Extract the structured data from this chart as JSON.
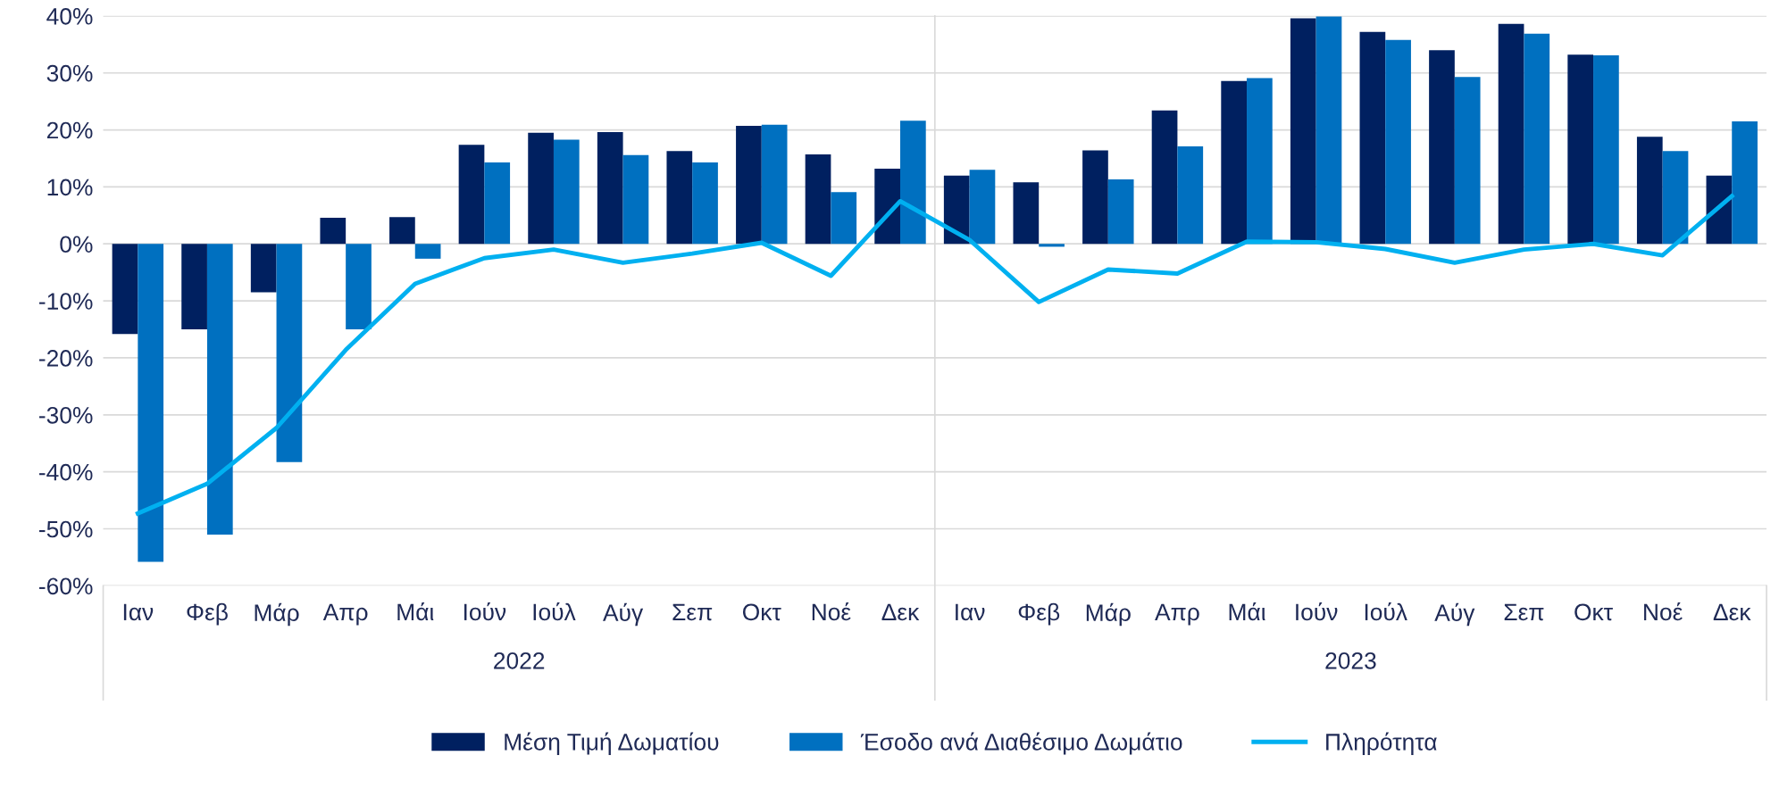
{
  "chart_data": {
    "type": "bar",
    "categories": [
      "Ιαν",
      "Φεβ",
      "Μάρ",
      "Απρ",
      "Μάι",
      "Ιούν",
      "Ιούλ",
      "Αύγ",
      "Σεπ",
      "Οκτ",
      "Νοέ",
      "Δεκ",
      "Ιαν",
      "Φεβ",
      "Μάρ",
      "Απρ",
      "Μάι",
      "Ιούν",
      "Ιούλ",
      "Αύγ",
      "Σεπ",
      "Οκτ",
      "Νοέ",
      "Δεκ"
    ],
    "series": [
      {
        "name": "Μέση Τιμή Δωματίου",
        "color": "#002060",
        "values": [
          -15.8,
          -15,
          -8.5,
          4.6,
          4.7,
          17.4,
          19.5,
          19.6,
          16.3,
          20.7,
          15.7,
          13.2,
          12,
          10.8,
          16.4,
          23.4,
          28.6,
          39.6,
          37.2,
          34,
          38.6,
          33.2,
          18.8,
          12
        ]
      },
      {
        "name": "Έσοδο ανά Διαθέσιμο Δωμάτιο",
        "color": "#0070c0",
        "values": [
          -55.8,
          -51,
          -38.3,
          -15,
          -2.6,
          14.3,
          18.3,
          15.6,
          14.3,
          20.9,
          9.1,
          21.6,
          13,
          -0.5,
          11.3,
          17.1,
          29.1,
          39.9,
          35.8,
          29.3,
          36.9,
          33.1,
          16.3,
          21.5
        ]
      },
      {
        "name": "Πληρότητα",
        "color": "#00b0f0",
        "type": "line",
        "values": [
          -47.3,
          -42.1,
          -32.3,
          -18.6,
          -7,
          -2.5,
          -1,
          -3.3,
          -1.7,
          0.2,
          -5.6,
          7.5,
          0.7,
          -10.2,
          -4.5,
          -5.2,
          0.4,
          0.3,
          -0.9,
          -3.3,
          -1,
          0,
          -2,
          8.4
        ]
      }
    ],
    "ylim": [
      -60,
      40
    ],
    "yticks": [
      {
        "value": -60,
        "label": "-60%"
      },
      {
        "value": -50,
        "label": "-50%"
      },
      {
        "value": -40,
        "label": "-40%"
      },
      {
        "value": -30,
        "label": "-30%"
      },
      {
        "value": -20,
        "label": "-20%"
      },
      {
        "value": -10,
        "label": "-10%"
      },
      {
        "value": 0,
        "label": "0%"
      },
      {
        "value": 10,
        "label": "10%"
      },
      {
        "value": 20,
        "label": "20%"
      },
      {
        "value": 30,
        "label": "30%"
      },
      {
        "value": 40,
        "label": "40%"
      }
    ],
    "annotations": [
      "2022",
      "2023"
    ],
    "grid": "y",
    "legend": "bottom",
    "marker": "none",
    "line_style": "solid"
  }
}
